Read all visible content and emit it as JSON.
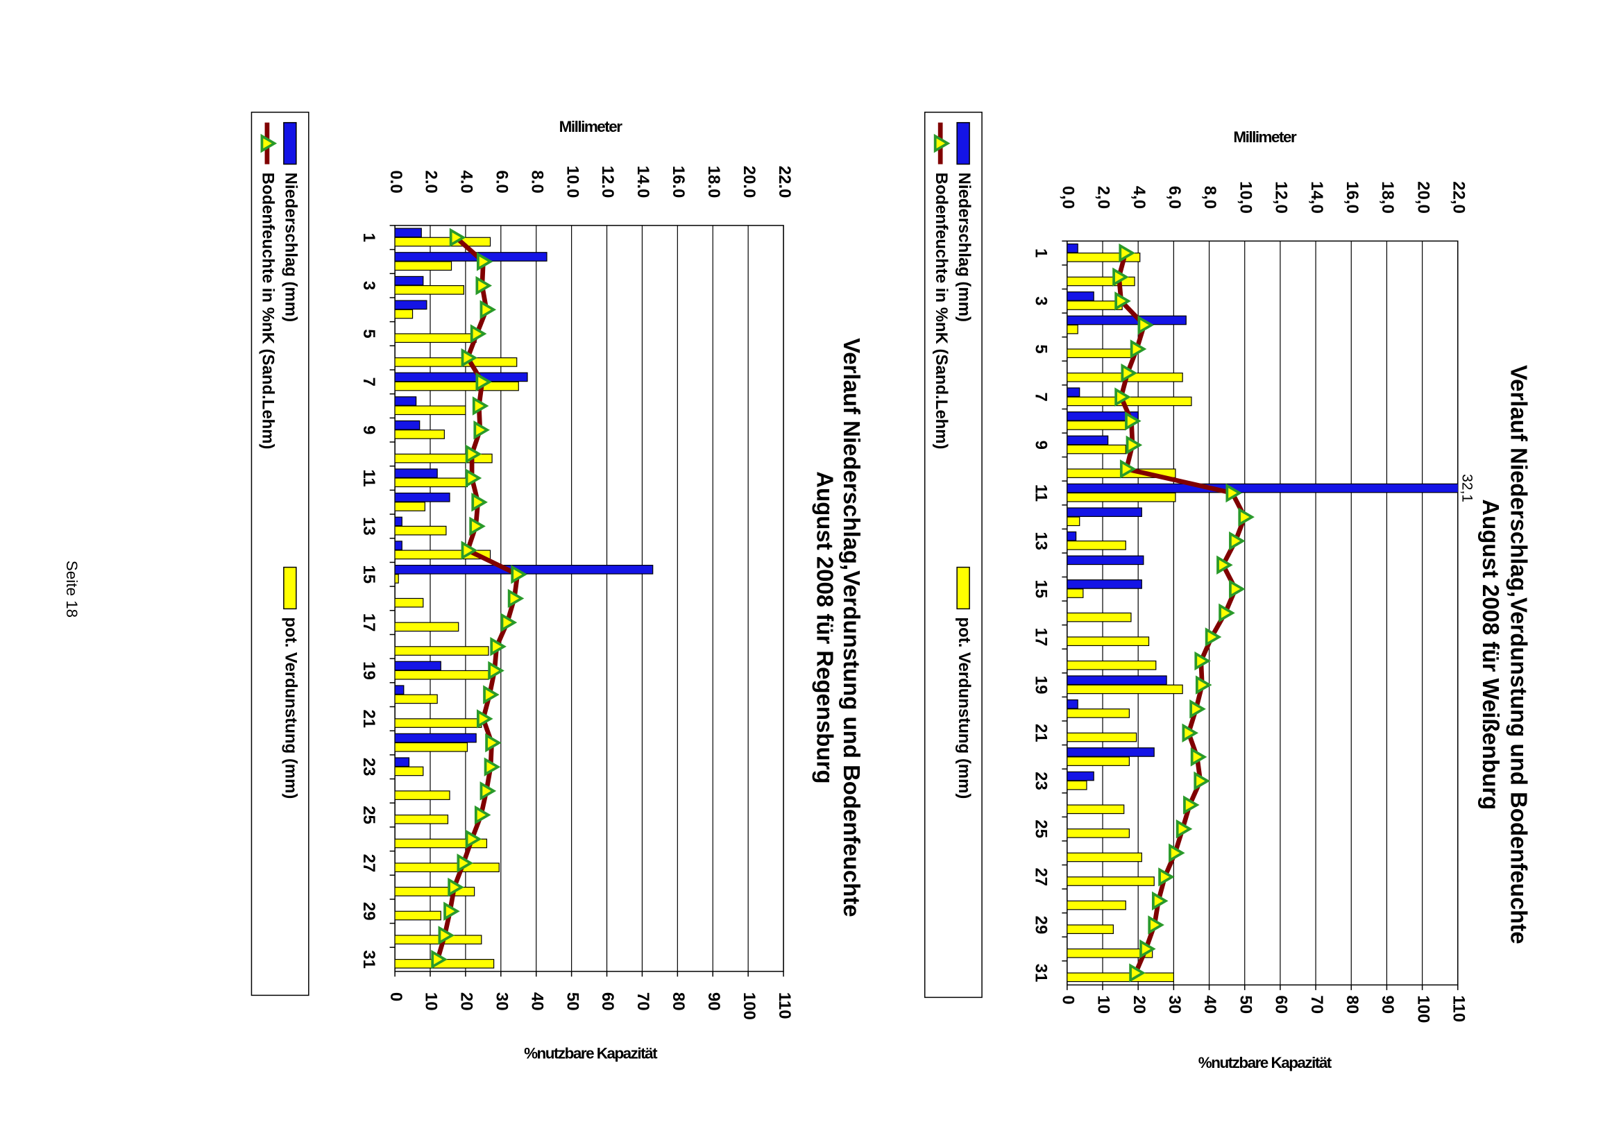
{
  "chart_data": [
    {
      "type": "bar",
      "title": "Verlauf Niederschlag,Verdunstung und Bodenfeuchte",
      "subtitle": "August 2008 für Weißenburg",
      "categories": [
        "1",
        null,
        "3",
        null,
        "5",
        null,
        "7",
        null,
        "9",
        null,
        "11",
        null,
        "13",
        null,
        "15",
        null,
        "17",
        null,
        "19",
        null,
        "21",
        null,
        "23",
        null,
        "25",
        null,
        "27",
        null,
        "29",
        null,
        "31"
      ],
      "series": [
        {
          "name": "Niederschlag (mm)",
          "color": "#1414e6",
          "values": [
            0.6,
            0,
            1.5,
            6.7,
            0,
            0,
            0.7,
            4.0,
            2.3,
            0,
            32.1,
            4.2,
            0.5,
            4.3,
            4.2,
            0,
            0,
            0,
            5.6,
            0.6,
            0,
            4.9,
            1.5,
            0,
            0,
            0,
            0,
            0,
            0,
            0,
            0
          ],
          "value_labels": [
            null,
            null,
            null,
            null,
            null,
            null,
            null,
            null,
            null,
            null,
            "32,1",
            null,
            null,
            null,
            null,
            null,
            null,
            null,
            null,
            null,
            null,
            null,
            null,
            null,
            null,
            null,
            null,
            null,
            null,
            null,
            null
          ]
        },
        {
          "name": "pot. Verdunstung (mm)",
          "color": "#ffff00",
          "values": [
            4.1,
            3.8,
            3.1,
            0.6,
            3.7,
            6.5,
            7.0,
            3.3,
            3.3,
            6.1,
            6.1,
            0.7,
            3.3,
            0,
            0.9,
            3.6,
            4.6,
            5.0,
            6.5,
            3.5,
            3.9,
            3.5,
            1.1,
            3.2,
            3.5,
            4.2,
            4.9,
            3.3,
            2.6,
            4.8,
            6.0
          ]
        },
        {
          "name": "Bodenfeuchte in %nK (Sand.Lehm)",
          "color": "#800000",
          "axis": "y2",
          "values": [
            16.4,
            14.6,
            15.2,
            21.7,
            19.6,
            17.0,
            15.2,
            18.1,
            18.4,
            16.7,
            46.5,
            50.0,
            47.4,
            43.9,
            47.4,
            44.5,
            40.7,
            37.7,
            38.0,
            36.3,
            34.2,
            36.6,
            37.5,
            34.5,
            32.5,
            30.4,
            27.5,
            25.7,
            24.6,
            22.2,
            19.3
          ]
        }
      ],
      "ylabel": "Millimeter",
      "y2label": "%nutzbare Kapazität",
      "ylim": [
        0,
        22
      ],
      "yticks": [
        {
          "value": 0,
          "label": "0,0"
        },
        {
          "value": 2,
          "label": "2,0"
        },
        {
          "value": 4,
          "label": "4,0"
        },
        {
          "value": 6,
          "label": "6,0"
        },
        {
          "value": 8,
          "label": "8,0"
        },
        {
          "value": 10,
          "label": "10,0"
        },
        {
          "value": 12,
          "label": "12,0"
        },
        {
          "value": 14,
          "label": "14,0"
        },
        {
          "value": 16,
          "label": "16,0"
        },
        {
          "value": 18,
          "label": "18,0"
        },
        {
          "value": 20,
          "label": "20,0"
        },
        {
          "value": 22,
          "label": "22,0"
        }
      ],
      "y2lim": [
        0,
        110
      ],
      "y2ticks": [
        0,
        10,
        20,
        30,
        40,
        50,
        60,
        70,
        80,
        90,
        100,
        110
      ],
      "grid": true
    },
    {
      "type": "bar",
      "title": "Verlauf Niederschlag,Verdunstung und Bodenfeuchte",
      "subtitle": "August 2008 für Regensburg",
      "categories": [
        "1",
        null,
        "3",
        null,
        "5",
        null,
        "7",
        null,
        "9",
        null,
        "11",
        null,
        "13",
        null,
        "15",
        null,
        "17",
        null,
        "19",
        null,
        "21",
        null,
        "23",
        null,
        "25",
        null,
        "27",
        null,
        "29",
        null,
        "31"
      ],
      "series": [
        {
          "name": "Niederschlag (mm)",
          "color": "#1414e6",
          "values": [
            1.5,
            8.6,
            1.6,
            1.8,
            0,
            0,
            7.5,
            1.2,
            1.4,
            0,
            2.4,
            3.1,
            0.4,
            0.4,
            14.6,
            0,
            0,
            0,
            2.6,
            0.5,
            0,
            4.6,
            0.8,
            0,
            0,
            0,
            0,
            0,
            0,
            0,
            0
          ]
        },
        {
          "name": "pot. Verdunstung (mm)",
          "color": "#ffff00",
          "values": [
            5.4,
            3.2,
            3.9,
            1.0,
            4.6,
            6.9,
            7.0,
            4.0,
            2.8,
            5.5,
            4.1,
            1.7,
            2.9,
            5.4,
            0.2,
            1.6,
            3.6,
            5.3,
            5.3,
            2.4,
            4.9,
            4.1,
            1.6,
            3.1,
            3.0,
            5.2,
            5.9,
            4.5,
            2.6,
            4.9,
            5.6
          ]
        },
        {
          "name": "Bodenfeuchte in %nK (Sand.Lehm)",
          "color": "#800000",
          "axis": "y2",
          "values": [
            17.3,
            25.0,
            24.7,
            25.9,
            23.2,
            20.6,
            24.7,
            23.8,
            24.1,
            21.8,
            21.8,
            23.5,
            22.9,
            20.6,
            34.7,
            33.8,
            31.8,
            28.8,
            28.2,
            26.8,
            25.0,
            27.4,
            27.1,
            25.9,
            24.4,
            21.8,
            19.4,
            16.8,
            15.6,
            14.1,
            12.1
          ]
        }
      ],
      "ylabel": "Millimeter",
      "y2label": "%nutzbare Kapazität",
      "ylim": [
        0,
        22
      ],
      "yticks": [
        {
          "value": 0,
          "label": "0.0"
        },
        {
          "value": 2,
          "label": "2.0"
        },
        {
          "value": 4,
          "label": "4.0"
        },
        {
          "value": 6,
          "label": "6.0"
        },
        {
          "value": 8,
          "label": "8.0"
        },
        {
          "value": 10,
          "label": "10.0"
        },
        {
          "value": 12,
          "label": "12.0"
        },
        {
          "value": 14,
          "label": "14.0"
        },
        {
          "value": 16,
          "label": "16.0"
        },
        {
          "value": 18,
          "label": "18.0"
        },
        {
          "value": 20,
          "label": "20.0"
        },
        {
          "value": 22,
          "label": "22.0"
        }
      ],
      "y2lim": [
        0,
        110
      ],
      "y2ticks": [
        0,
        10,
        20,
        30,
        40,
        50,
        60,
        70,
        80,
        90,
        100,
        110
      ],
      "grid": true
    }
  ],
  "footer": "Seite 18"
}
